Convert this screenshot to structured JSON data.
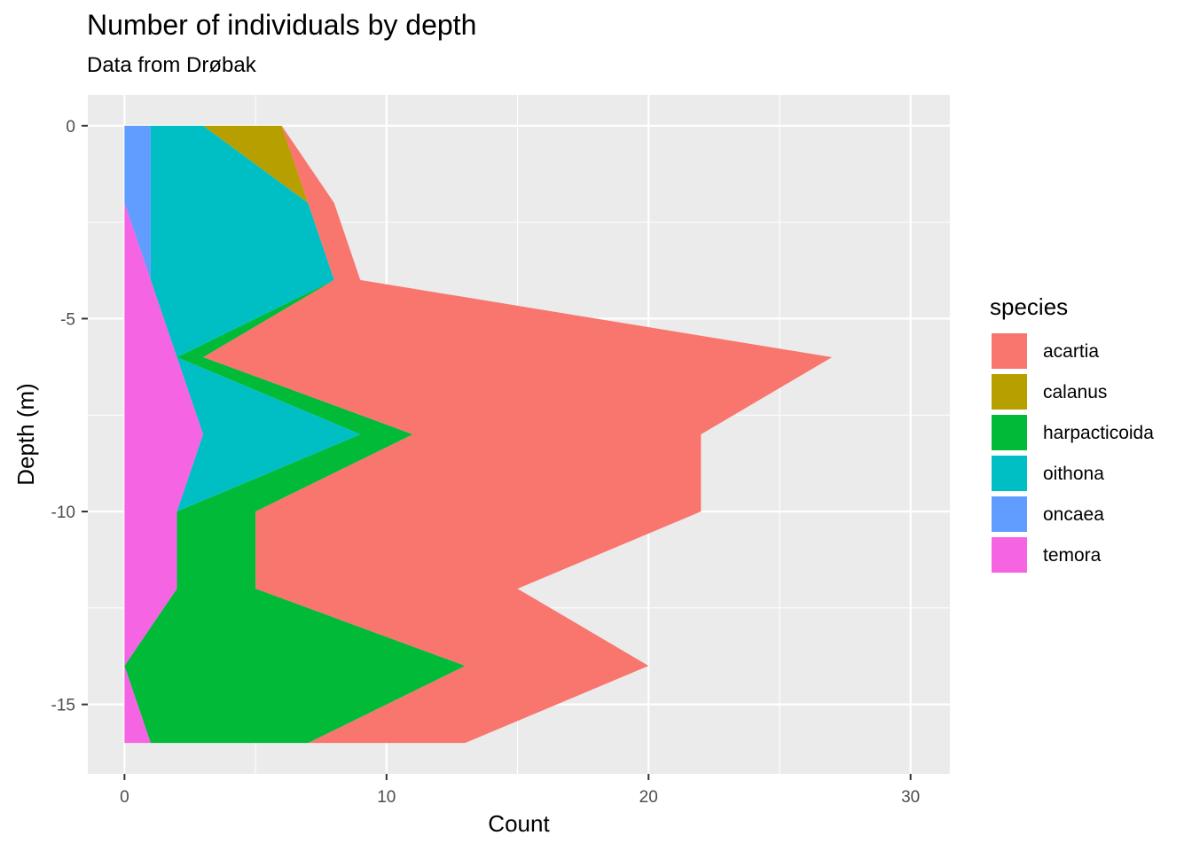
{
  "chart_data": {
    "type": "area",
    "orientation": "horizontal",
    "stacked": true,
    "title": "Number of individuals by depth",
    "subtitle": "Data from Drøbak",
    "xlabel": "Count",
    "ylabel": "Depth (m)",
    "xlim": [
      -1.4,
      31.5
    ],
    "ylim": [
      -16.8,
      0.8
    ],
    "xticks": [
      0,
      10,
      20,
      30
    ],
    "yticks": [
      0,
      -5,
      -10,
      -15
    ],
    "xtick_labels": [
      "0",
      "10",
      "20",
      "30"
    ],
    "ytick_labels": [
      "0",
      "-5",
      "-10",
      "-15"
    ],
    "grid": true,
    "legend_title": "species",
    "legend_position": "right",
    "depth": [
      0,
      -2,
      -4,
      -6,
      -8,
      -10,
      -12,
      -14,
      -16
    ],
    "series": [
      {
        "name": "acartia",
        "color": "#F8766D",
        "values": [
          0,
          1,
          1,
          24,
          11,
          17,
          10,
          7,
          6
        ]
      },
      {
        "name": "calanus",
        "color": "#B79F00",
        "values": [
          3,
          0,
          0,
          0,
          0,
          0,
          0,
          0,
          0
        ]
      },
      {
        "name": "harpacticoida",
        "color": "#00BA38",
        "values": [
          0,
          0,
          0,
          1,
          2,
          3,
          3,
          13,
          6
        ]
      },
      {
        "name": "oithona",
        "color": "#00BFC4",
        "values": [
          2,
          6,
          7,
          0,
          6,
          0,
          0,
          0,
          0
        ]
      },
      {
        "name": "oncaea",
        "color": "#619CFF",
        "values": [
          1,
          1,
          0,
          0,
          0,
          0,
          0,
          0,
          0
        ]
      },
      {
        "name": "temora",
        "color": "#F564E3",
        "values": [
          0,
          0,
          1,
          2,
          3,
          2,
          2,
          0,
          1
        ]
      }
    ]
  }
}
